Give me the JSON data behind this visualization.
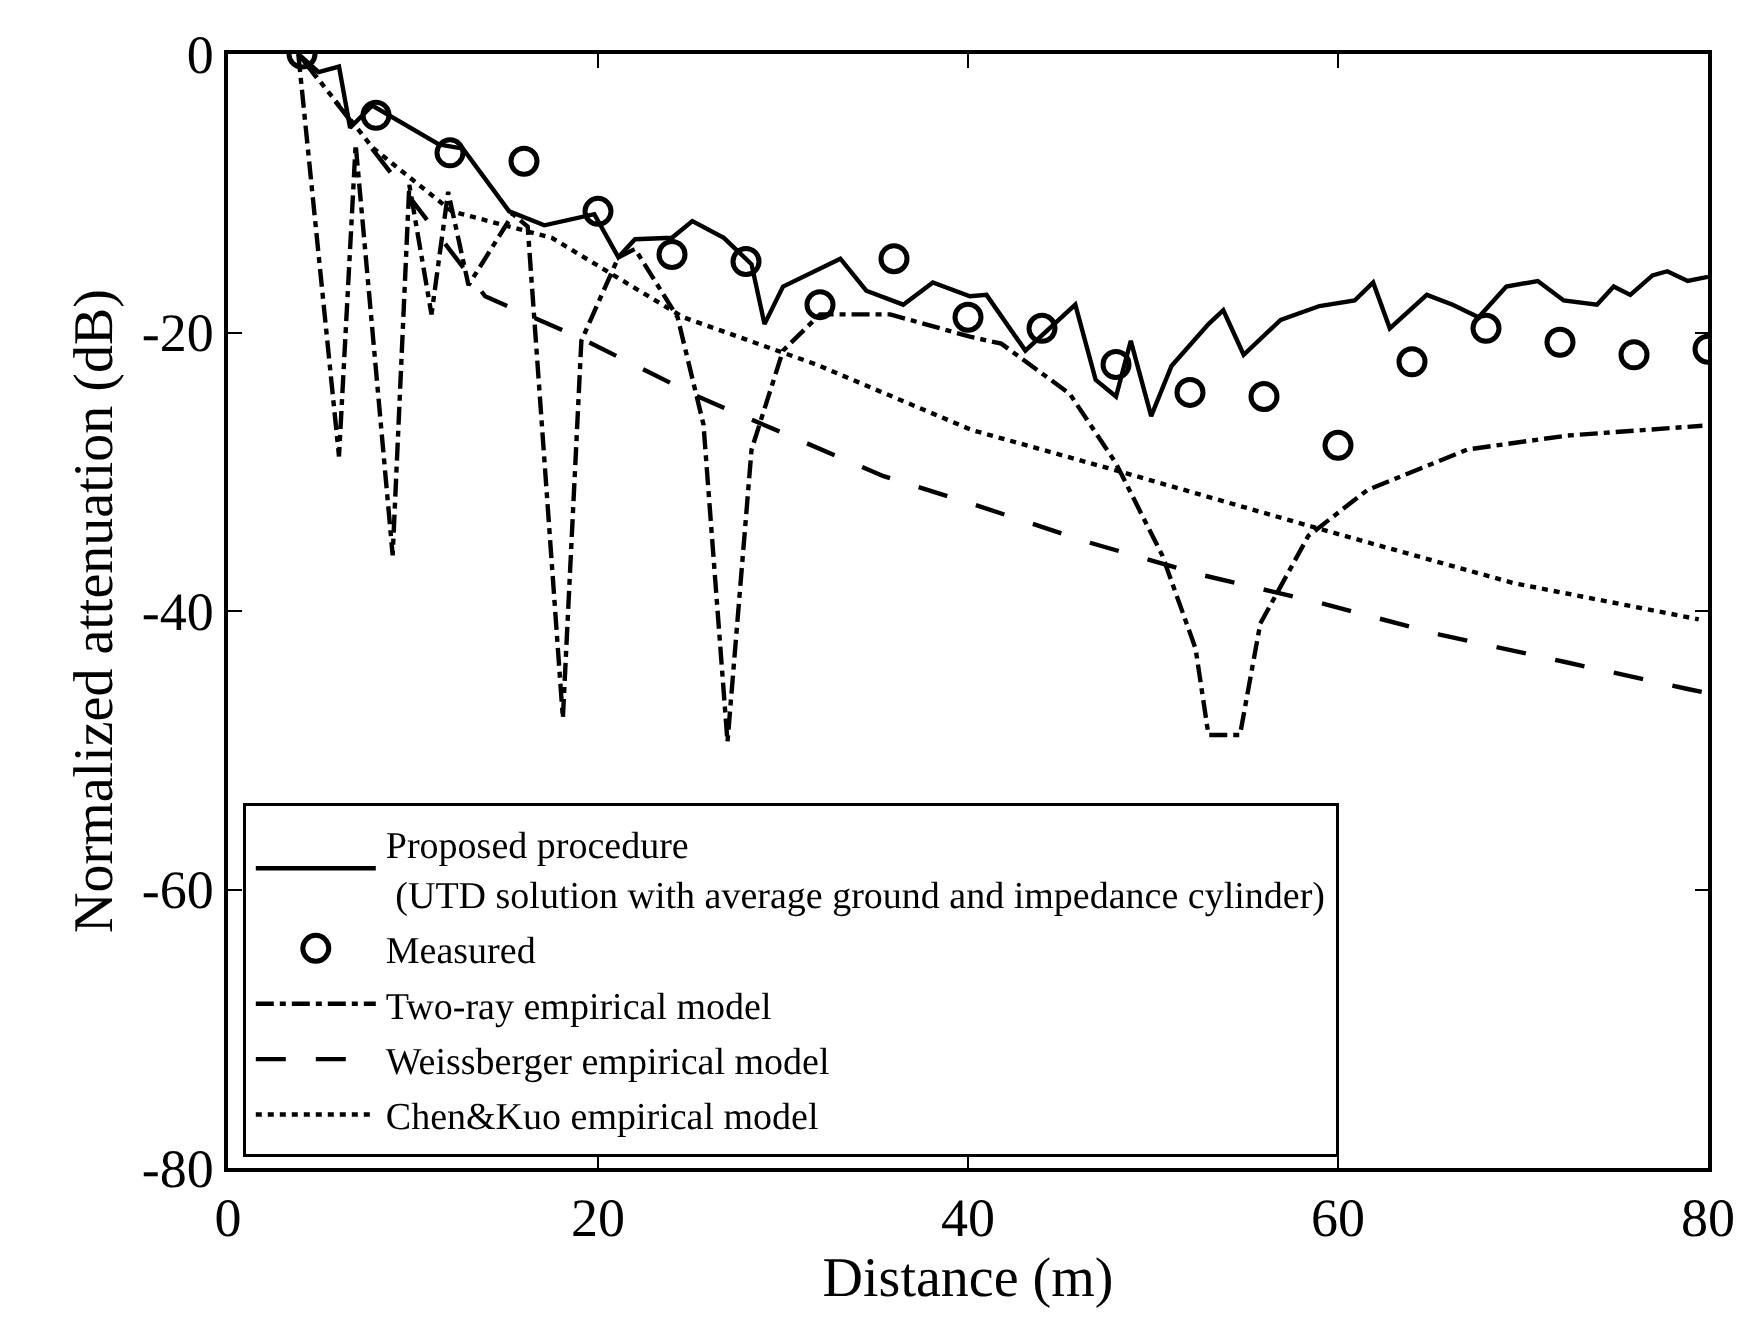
{
  "chart_data": {
    "type": "line",
    "xlabel": "Distance (m)",
    "ylabel": "Normalized attenuation (dB)",
    "xlim": [
      0,
      80
    ],
    "ylim": [
      -80,
      0
    ],
    "xticks": [
      0,
      20,
      40,
      60,
      80
    ],
    "yticks": [
      -80,
      -60,
      -40,
      -20,
      0
    ],
    "legend": "bottom left",
    "series": [
      {
        "name": "Proposed procedure\n (UTD solution with average ground and impedance cylinder)",
        "color": "#000000",
        "line_style": "solid",
        "marker": "none",
        "x": [
          3.8,
          4.9,
          6.0,
          6.6,
          7.8,
          11.4,
          12.7,
          15.2,
          17.1,
          19.8,
          21.1,
          22.0,
          24.0,
          25.1,
          26.8,
          28.3,
          29.0,
          30.0,
          33.1,
          34.5,
          36.5,
          38.1,
          40.1,
          41.0,
          43.1,
          45.8,
          46.9,
          48.0,
          48.8,
          49.9,
          51.0,
          53.0,
          53.8,
          54.9,
          56.9,
          59.0,
          60.9,
          61.9,
          62.8,
          64.8,
          66.2,
          67.6,
          69.1,
          70.8,
          72.2,
          74.0,
          74.9,
          75.8,
          77.0,
          77.8,
          78.9,
          80.0
        ],
        "values": [
          0,
          -1.3,
          -0.9,
          -5.3,
          -3.7,
          -6.5,
          -6.8,
          -11.3,
          -12.3,
          -11.5,
          -14.6,
          -13.3,
          -13.2,
          -12.0,
          -13.2,
          -15.1,
          -19.4,
          -16.7,
          -14.7,
          -17.0,
          -18.0,
          -16.4,
          -17.4,
          -17.3,
          -21.3,
          -18.0,
          -23.4,
          -24.6,
          -20.6,
          -26.0,
          -22.4,
          -19.4,
          -18.4,
          -21.6,
          -19.1,
          -18.1,
          -17.7,
          -16.4,
          -19.7,
          -17.3,
          -18.0,
          -18.9,
          -16.7,
          -16.3,
          -17.7,
          -18.0,
          -16.7,
          -17.3,
          -15.9,
          -15.6,
          -16.3,
          -16.0
        ]
      },
      {
        "name": "Measured",
        "type": "scatter",
        "color": "#000000",
        "marker": "circle",
        "x": [
          4,
          8,
          12,
          16,
          20,
          24,
          28,
          32,
          36,
          40,
          44,
          48,
          52,
          56,
          60,
          64,
          68,
          72,
          76,
          80
        ],
        "values": [
          0,
          -4.4,
          -7.1,
          -7.7,
          -11.3,
          -14.4,
          -14.9,
          -18.0,
          -14.7,
          -18.9,
          -19.7,
          -22.3,
          -24.3,
          -24.6,
          -28.1,
          -22.1,
          -19.7,
          -20.7,
          -21.6,
          -21.2
        ]
      },
      {
        "name": "Two-ray empirical model",
        "color": "#000000",
        "line_style": "dashdot",
        "marker": "none",
        "x": [
          3.8,
          6.0,
          6.9,
          8.9,
          9.8,
          11.0,
          11.9,
          13.0,
          14.6,
          15.4,
          16.2,
          18.1,
          19.1,
          21.1,
          22.0,
          24.3,
          25.7,
          27.0,
          28.3,
          30.0,
          32.0,
          35.8,
          40.1,
          41.8,
          45.5,
          48.0,
          50.5,
          52.3,
          53.0,
          54.7,
          55.8,
          58.4,
          61.6,
          67.0,
          72.4,
          79.7
        ],
        "values": [
          0,
          -28.9,
          -6.5,
          -36.0,
          -9.4,
          -18.7,
          -9.9,
          -16.6,
          -13.2,
          -11.5,
          -12.4,
          -47.7,
          -20.6,
          -14.6,
          -14.0,
          -18.9,
          -26.6,
          -49.4,
          -28.4,
          -21.3,
          -18.7,
          -18.7,
          -20.3,
          -20.8,
          -24.4,
          -29.4,
          -36.0,
          -42.7,
          -48.9,
          -48.9,
          -40.9,
          -34.6,
          -31.3,
          -28.4,
          -27.4,
          -26.7
        ]
      },
      {
        "name": "Weissberger empirical model",
        "color": "#000000",
        "line_style": "dashed",
        "marker": "none",
        "x": [
          3.8,
          6.8,
          10.0,
          13.9,
          18.9,
          25.4,
          35.4,
          40.2,
          46.6,
          52.6,
          59.0,
          65.5,
          72.4,
          78.9,
          80.0
        ],
        "values": [
          0,
          -5.1,
          -10.6,
          -17.4,
          -20.3,
          -24.6,
          -30.3,
          -32.3,
          -35.1,
          -37.4,
          -39.4,
          -41.7,
          -43.7,
          -45.6,
          -45.9
        ]
      },
      {
        "name": "Chen&Kuo empirical model",
        "color": "#000000",
        "line_style": "dotted",
        "marker": "none",
        "x": [
          3.8,
          7.8,
          12.1,
          17.5,
          24.6,
          31.8,
          40.2,
          48.0,
          59.0,
          69.5,
          79.5
        ],
        "values": [
          0,
          -6.7,
          -11.3,
          -13.2,
          -18.9,
          -22.3,
          -27.0,
          -29.9,
          -34.1,
          -38.0,
          -40.6
        ]
      }
    ]
  }
}
